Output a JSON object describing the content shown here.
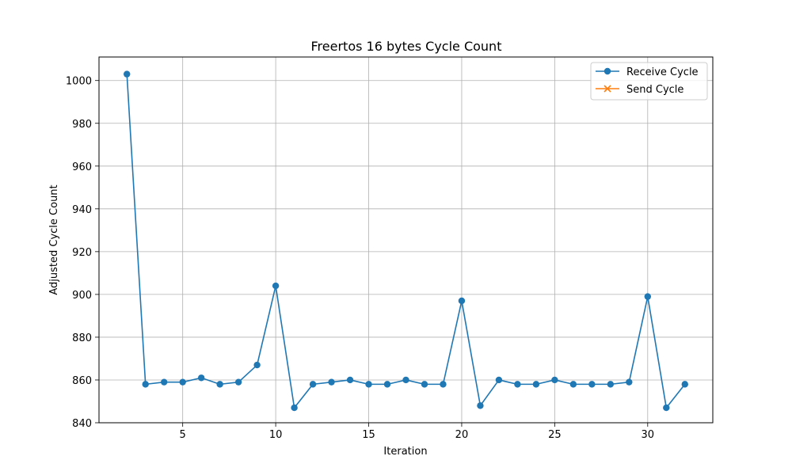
{
  "chart_data": {
    "type": "line",
    "title": "Freertos 16 bytes Cycle Count",
    "xlabel": "Iteration",
    "ylabel": "Adjusted Cycle Count",
    "xlim": [
      0.5,
      33.5
    ],
    "ylim": [
      840,
      1011
    ],
    "xticks": [
      5,
      10,
      15,
      20,
      25,
      30
    ],
    "yticks": [
      840,
      860,
      880,
      900,
      920,
      940,
      960,
      980,
      1000
    ],
    "grid": true,
    "legend_position": "top-right",
    "series": [
      {
        "name": "Receive Cycle",
        "marker": "circle",
        "color": "#1f77b4",
        "x": [
          2,
          3,
          4,
          5,
          6,
          7,
          8,
          9,
          10,
          11,
          12,
          13,
          14,
          15,
          16,
          17,
          18,
          19,
          20,
          21,
          22,
          23,
          24,
          25,
          26,
          27,
          28,
          29,
          30,
          31,
          32
        ],
        "y": [
          1003,
          858,
          859,
          859,
          861,
          858,
          859,
          867,
          904,
          847,
          858,
          859,
          860,
          858,
          858,
          860,
          858,
          858,
          897,
          848,
          860,
          858,
          858,
          860,
          858,
          858,
          858,
          859,
          899,
          847,
          858
        ]
      },
      {
        "name": "Send Cycle",
        "marker": "x",
        "color": "#ff7f0e",
        "x": [],
        "y": []
      }
    ]
  }
}
